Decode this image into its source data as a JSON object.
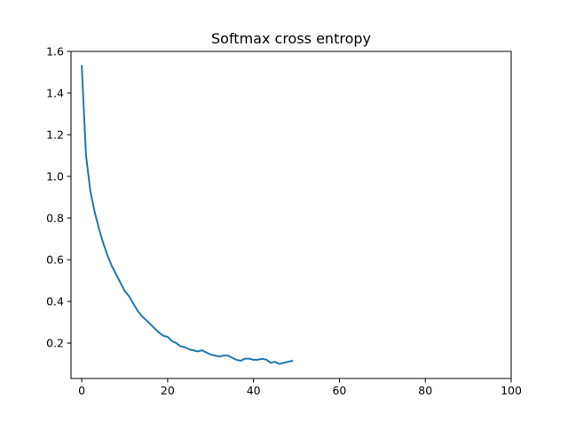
{
  "chart_data": {
    "type": "line",
    "title": "Softmax cross entropy",
    "xlabel": "",
    "ylabel": "",
    "xlim": [
      -2.5,
      100
    ],
    "ylim": [
      0.03,
      1.6
    ],
    "xticks": [
      0,
      20,
      40,
      60,
      80,
      100
    ],
    "yticks": [
      0.2,
      0.4,
      0.6,
      0.8,
      1.0,
      1.2,
      1.4,
      1.6
    ],
    "grid": false,
    "legend": "none",
    "series": [
      {
        "color": "#1f77b4",
        "x": [
          0,
          1,
          2,
          3,
          4,
          5,
          6,
          7,
          8,
          9,
          10,
          11,
          12,
          13,
          14,
          15,
          16,
          17,
          18,
          19,
          20,
          21,
          22,
          23,
          24,
          25,
          26,
          27,
          28,
          29,
          30,
          31,
          32,
          33,
          34,
          35,
          36,
          37,
          38,
          39,
          40,
          41,
          42,
          43,
          44,
          45,
          46,
          47,
          48,
          49
        ],
        "values": [
          1.53,
          1.1,
          0.93,
          0.83,
          0.75,
          0.68,
          0.62,
          0.57,
          0.53,
          0.49,
          0.45,
          0.425,
          0.39,
          0.355,
          0.33,
          0.31,
          0.29,
          0.27,
          0.25,
          0.235,
          0.23,
          0.21,
          0.2,
          0.185,
          0.18,
          0.17,
          0.165,
          0.16,
          0.165,
          0.155,
          0.145,
          0.14,
          0.135,
          0.14,
          0.14,
          0.13,
          0.12,
          0.115,
          0.125,
          0.125,
          0.12,
          0.12,
          0.125,
          0.12,
          0.105,
          0.11,
          0.1,
          0.105,
          0.11,
          0.115
        ]
      }
    ]
  }
}
